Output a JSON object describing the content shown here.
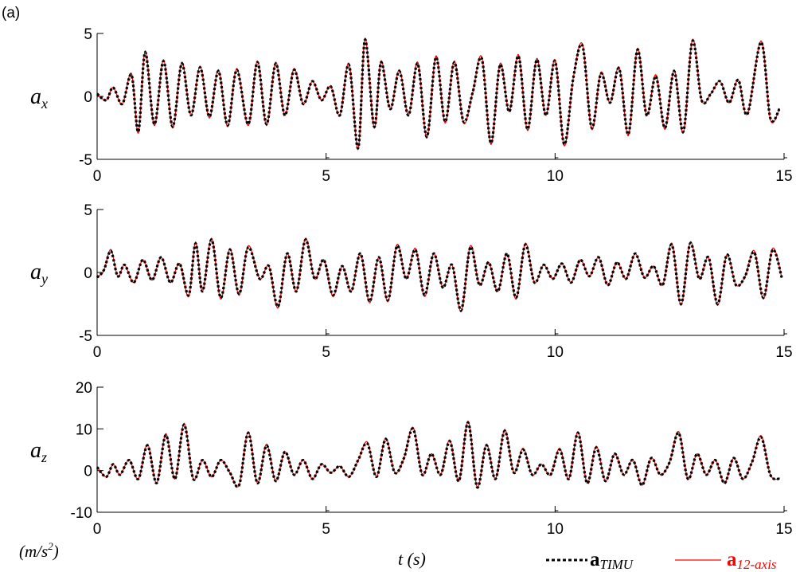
{
  "panel_label": "(a)",
  "unit_label": {
    "open": "(",
    "var": "m/s",
    "sup": "2",
    "close": ")"
  },
  "legend": {
    "timu": {
      "main": "a",
      "sub": "TIMU",
      "color": "#000000",
      "style": "dotted"
    },
    "axis12": {
      "main": "a",
      "sub": "12-axis",
      "color": "#ff0000",
      "style": "solid"
    }
  },
  "colors": {
    "timu": "#000000",
    "axis12": "#ff0000"
  },
  "chart_data": [
    {
      "type": "line",
      "ylabel": {
        "main": "a",
        "sub": "x"
      },
      "xlabel": "",
      "xlim": [
        0,
        15
      ],
      "ylim": [
        -5,
        5
      ],
      "xticks": [
        "0",
        "5",
        "10",
        "15"
      ],
      "yticks": [
        "5",
        "0",
        "-5"
      ],
      "series_names": [
        "a_TIMU",
        "a_12-axis"
      ],
      "x": [
        0.0,
        0.2,
        0.35,
        0.55,
        0.75,
        0.9,
        1.05,
        1.25,
        1.45,
        1.65,
        1.85,
        2.05,
        2.25,
        2.45,
        2.65,
        2.85,
        3.05,
        3.3,
        3.5,
        3.7,
        3.9,
        4.1,
        4.3,
        4.5,
        4.7,
        4.9,
        5.1,
        5.3,
        5.5,
        5.7,
        5.85,
        6.05,
        6.2,
        6.4,
        6.6,
        6.8,
        7.0,
        7.2,
        7.4,
        7.6,
        7.8,
        8.0,
        8.2,
        8.4,
        8.6,
        8.8,
        9.0,
        9.2,
        9.4,
        9.6,
        9.8,
        10.0,
        10.2,
        10.4,
        10.6,
        10.8,
        11.0,
        11.2,
        11.4,
        11.6,
        11.8,
        12.0,
        12.2,
        12.4,
        12.6,
        12.8,
        13.0,
        13.2,
        13.4,
        13.6,
        13.8,
        14.0,
        14.2,
        14.5,
        14.7,
        14.9
      ],
      "y": [
        0.2,
        -0.3,
        0.7,
        -0.6,
        1.7,
        -2.8,
        3.5,
        -2.2,
        2.8,
        -2.4,
        2.6,
        -1.5,
        2.3,
        -1.6,
        2.0,
        -2.3,
        2.1,
        -2.2,
        2.7,
        -2.2,
        2.6,
        -1.5,
        2.1,
        -0.6,
        1.2,
        -0.3,
        0.8,
        -1.5,
        2.5,
        -4.1,
        4.5,
        -2.4,
        2.7,
        -1.0,
        2.0,
        -1.5,
        2.6,
        -3.2,
        3.1,
        -2.0,
        2.7,
        -2.0,
        0.3,
        3.0,
        -3.7,
        2.5,
        -1.2,
        3.2,
        -2.6,
        2.9,
        -1.5,
        2.8,
        -3.8,
        1.5,
        4.0,
        -2.5,
        1.8,
        -0.5,
        2.2,
        -3.0,
        3.7,
        -1.5,
        1.6,
        -2.5,
        2.0,
        -2.8,
        4.4,
        -0.3,
        0.2,
        1.2,
        -0.5,
        1.3,
        -1.4,
        4.3,
        -1.7,
        -1.0
      ]
    },
    {
      "type": "line",
      "ylabel": {
        "main": "a",
        "sub": "y"
      },
      "xlabel": "",
      "xlim": [
        0,
        15
      ],
      "ylim": [
        -5,
        5
      ],
      "xticks": [
        "0",
        "5",
        "10",
        "15"
      ],
      "yticks": [
        "5",
        "0",
        "-5"
      ],
      "series_names": [
        "a_TIMU",
        "a_12-axis"
      ],
      "x": [
        0.0,
        0.15,
        0.3,
        0.45,
        0.6,
        0.8,
        1.0,
        1.2,
        1.4,
        1.6,
        1.8,
        2.0,
        2.15,
        2.3,
        2.5,
        2.7,
        2.9,
        3.1,
        3.3,
        3.55,
        3.75,
        3.95,
        4.15,
        4.35,
        4.55,
        4.75,
        4.95,
        5.15,
        5.35,
        5.55,
        5.75,
        5.95,
        6.15,
        6.35,
        6.55,
        6.75,
        6.95,
        7.15,
        7.35,
        7.55,
        7.75,
        7.95,
        8.15,
        8.35,
        8.55,
        8.75,
        8.95,
        9.15,
        9.35,
        9.55,
        9.75,
        9.95,
        10.15,
        10.35,
        10.55,
        10.75,
        10.95,
        11.15,
        11.35,
        11.55,
        11.75,
        11.95,
        12.15,
        12.35,
        12.55,
        12.75,
        12.95,
        13.15,
        13.35,
        13.55,
        13.75,
        13.95,
        14.15,
        14.35,
        14.55,
        14.75,
        14.95
      ],
      "y": [
        -0.4,
        0.2,
        1.7,
        -0.3,
        0.6,
        -0.8,
        1.0,
        -0.6,
        1.2,
        -0.8,
        0.7,
        -1.8,
        2.3,
        -1.5,
        2.6,
        -2.0,
        1.8,
        -1.7,
        2.0,
        -0.5,
        0.5,
        -2.7,
        1.5,
        -1.5,
        2.6,
        -0.5,
        1.0,
        -1.8,
        0.5,
        -1.5,
        1.5,
        -2.3,
        1.2,
        -2.2,
        2.1,
        -0.5,
        1.8,
        -1.8,
        1.5,
        -1.2,
        0.6,
        -3.0,
        2.0,
        -1.0,
        0.8,
        -1.5,
        1.5,
        -2.0,
        2.2,
        -0.8,
        0.6,
        -0.5,
        0.7,
        -0.8,
        1.0,
        -0.3,
        1.2,
        -1.0,
        0.8,
        -0.5,
        1.5,
        -0.4,
        0.5,
        -1.0,
        2.2,
        -2.5,
        2.3,
        -0.5,
        1.2,
        -2.5,
        1.4,
        -1.0,
        -0.3,
        1.6,
        -2.0,
        1.8,
        -0.4
      ]
    },
    {
      "type": "line",
      "ylabel": {
        "main": "a",
        "sub": "z"
      },
      "xlabel": "",
      "xlim": [
        0,
        15
      ],
      "ylim": [
        -10,
        20
      ],
      "xticks": [
        "0",
        "5",
        "10",
        "15"
      ],
      "yticks": [
        "20",
        "10",
        "0",
        "-10"
      ],
      "series_names": [
        "a_TIMU",
        "a_12-axis"
      ],
      "x": [
        0.0,
        0.2,
        0.35,
        0.5,
        0.7,
        0.9,
        1.1,
        1.3,
        1.5,
        1.7,
        1.9,
        2.1,
        2.3,
        2.5,
        2.7,
        2.9,
        3.1,
        3.3,
        3.5,
        3.7,
        3.9,
        4.1,
        4.3,
        4.5,
        4.7,
        4.9,
        5.1,
        5.3,
        5.5,
        5.7,
        5.9,
        6.1,
        6.3,
        6.5,
        6.7,
        6.9,
        7.1,
        7.3,
        7.5,
        7.7,
        7.9,
        8.1,
        8.3,
        8.5,
        8.7,
        8.9,
        9.1,
        9.3,
        9.5,
        9.7,
        9.9,
        10.1,
        10.3,
        10.5,
        10.7,
        10.9,
        11.1,
        11.3,
        11.5,
        11.7,
        11.9,
        12.1,
        12.3,
        12.5,
        12.7,
        12.9,
        13.1,
        13.3,
        13.5,
        13.7,
        13.9,
        14.1,
        14.3,
        14.5,
        14.7,
        14.9
      ],
      "y": [
        0.8,
        -1.5,
        1.5,
        -1.0,
        2.5,
        -2.0,
        6.0,
        -3.0,
        8.5,
        -2.0,
        11.0,
        -2.0,
        2.5,
        -1.5,
        2.5,
        -0.5,
        -3.5,
        9.0,
        -3.0,
        6.0,
        -2.5,
        4.5,
        -1.0,
        2.5,
        -2.0,
        1.5,
        -0.5,
        1.0,
        -1.5,
        2.5,
        6.5,
        -1.5,
        7.5,
        -0.5,
        3.0,
        10.0,
        -1.0,
        4.0,
        -1.0,
        7.0,
        -2.5,
        11.5,
        -4.0,
        6.0,
        -2.0,
        9.5,
        -0.5,
        5.0,
        -1.0,
        1.5,
        -1.0,
        5.0,
        -2.0,
        9.0,
        -3.0,
        5.5,
        -2.5,
        4.0,
        -1.0,
        2.5,
        -3.5,
        3.0,
        -1.0,
        2.0,
        9.0,
        -2.0,
        4.0,
        -1.0,
        2.5,
        -3.0,
        3.0,
        -2.0,
        2.0,
        8.0,
        -1.0,
        -2.0
      ]
    }
  ]
}
